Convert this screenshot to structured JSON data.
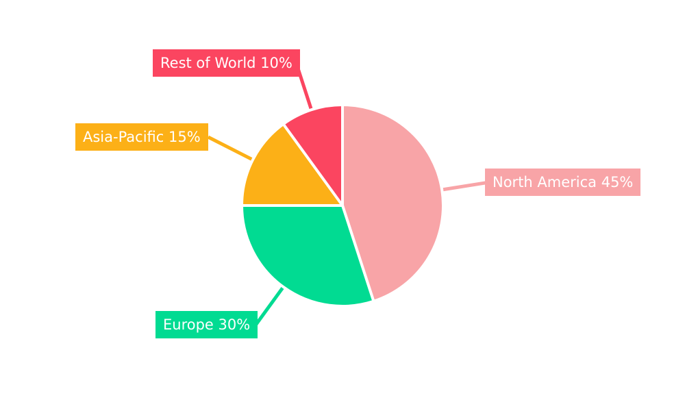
{
  "chart_data": {
    "type": "pie",
    "title": "",
    "background": "#FFFFFF",
    "label_text_color": "#FFFFFF",
    "separator_color": "#FFFFFF",
    "start_angle_deg": 0,
    "direction": "clockwise",
    "slices": [
      {
        "name": "North America",
        "value": 45,
        "color": "#F8A4A7",
        "label_display": "North America 45%"
      },
      {
        "name": "Europe",
        "value": 30,
        "color": "#01DB92",
        "label_display": "Europe 30%"
      },
      {
        "name": "Asia-Pacific",
        "value": 15,
        "color": "#FCB017",
        "label_display": "Asia-Pacific 15%"
      },
      {
        "name": "Rest of World",
        "value": 10,
        "color": "#FB4560",
        "label_display": "Rest of World 10%"
      }
    ]
  }
}
